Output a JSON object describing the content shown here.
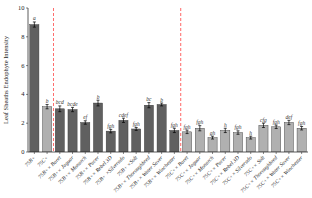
{
  "chart_data": {
    "type": "bar",
    "categories": [
      "75B+",
      "75C+",
      "75B+× Baret",
      "75B+× Jaguar",
      "75B+× Monarch",
      "75B+× Pacer",
      "75B+× Rebel 3D",
      "75B+ ×Silverado",
      "75B+ ×Solt",
      "75B+× Thoroughbred",
      "75B+× Water Saver",
      "75B+× Winchester",
      "75C+× Baret",
      "75C+× Jaguar",
      "75C+× Monarch",
      "75C+× Pacer",
      "75C+× Rebel 3D",
      "75C+× Silverado",
      "75C+× Solt",
      "75C+× Thoroughbred",
      "75C+× Water Saver",
      "75C+× Winchester"
    ],
    "values": [
      8.85,
      3.15,
      3.0,
      2.95,
      2.05,
      3.4,
      1.45,
      2.2,
      1.6,
      3.25,
      3.3,
      1.5,
      1.4,
      1.65,
      1.0,
      1.5,
      1.35,
      1.0,
      1.85,
      1.75,
      2.05,
      1.65
    ],
    "errors": [
      0.18,
      0.15,
      0.2,
      0.15,
      0.12,
      0.2,
      0.12,
      0.15,
      0.1,
      0.18,
      0.1,
      0.15,
      0.12,
      0.18,
      0.1,
      0.15,
      0.12,
      0.1,
      0.15,
      0.12,
      0.15,
      0.12
    ],
    "labels": [
      "a",
      "b",
      "bcd",
      "bcde",
      "ef",
      "b",
      "fgh",
      "cdef",
      "fgh",
      "bc",
      "b",
      "fgh",
      "fgh",
      "fgh",
      "gh",
      "h",
      "fgh",
      "h",
      "cfg",
      "fgh",
      "def",
      "fgh"
    ],
    "colors": [
      "#606060",
      "#b0b0b0",
      "#606060",
      "#606060",
      "#606060",
      "#606060",
      "#606060",
      "#606060",
      "#606060",
      "#606060",
      "#606060",
      "#606060",
      "#b0b0b0",
      "#b0b0b0",
      "#b0b0b0",
      "#b0b0b0",
      "#b0b0b0",
      "#b0b0b0",
      "#b0b0b0",
      "#b0b0b0",
      "#b0b0b0",
      "#b0b0b0"
    ],
    "vlines": [
      1.5,
      11.5
    ],
    "ylabel": "Leaf Sheaths Endophyte Intensity",
    "ylim": [
      0,
      10
    ],
    "yticks": [
      0,
      2,
      4,
      6,
      8,
      10
    ],
    "grid": false
  }
}
